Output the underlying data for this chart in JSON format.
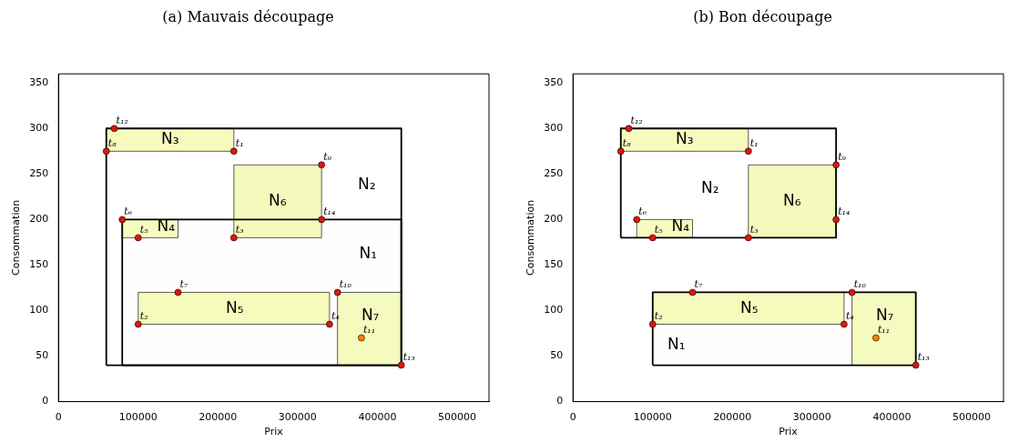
{
  "chart_data": [
    {
      "type": "scatter",
      "title": "(a) Mauvais découpage",
      "xlabel": "Prix",
      "ylabel": "Consommation",
      "xlim": [
        0,
        540000
      ],
      "ylim": [
        0,
        360
      ],
      "xticks": [
        0,
        100000,
        200000,
        300000,
        400000,
        500000
      ],
      "yticks": [
        0,
        50,
        100,
        150,
        200,
        250,
        300,
        350
      ],
      "grid": false,
      "legend": false,
      "series": [
        {
          "type": "area",
          "name": "N₃",
          "color": "#f6fabd",
          "x": [
            60000,
            220000,
            220000,
            60000,
            60000
          ],
          "values": [
            275,
            275,
            300,
            300,
            275
          ]
        },
        {
          "type": "area",
          "name": "N₆",
          "color": "#f5f9bc",
          "x": [
            220000,
            330000,
            330000,
            220000,
            220000
          ],
          "values": [
            180,
            180,
            260,
            260,
            180
          ]
        },
        {
          "type": "area",
          "name": "N₄",
          "color": "#f7fbbe",
          "x": [
            80000,
            150000,
            150000,
            80000,
            80000
          ],
          "values": [
            180,
            180,
            200,
            200,
            180
          ]
        },
        {
          "type": "area",
          "name": "N₅",
          "color": "#f6fbbc",
          "x": [
            100000,
            340000,
            340000,
            100000,
            100000
          ],
          "values": [
            85,
            85,
            120,
            120,
            85
          ]
        },
        {
          "type": "area",
          "name": "N₇",
          "color": "#f5fabe",
          "x": [
            350000,
            430000,
            430000,
            350000,
            350000
          ],
          "values": [
            40,
            40,
            120,
            120,
            40
          ]
        },
        {
          "type": "area",
          "name": "N₂",
          "color": "#ffffff",
          "x": [
            60000,
            430000,
            430000,
            60000,
            60000
          ],
          "values": [
            40,
            40,
            300,
            300,
            40
          ]
        },
        {
          "type": "area",
          "name": "N₁",
          "color": "#fefefe",
          "x": [
            80000,
            430000,
            430000,
            80000,
            80000
          ],
          "values": [
            40,
            40,
            200,
            200,
            40
          ]
        },
        {
          "colors": [
            "#e3140e",
            "#e3140e",
            "#e3140e",
            "#e3140e",
            "#e3140e",
            "#e3140e",
            "#e3140e",
            "#e3140e",
            "#e3140e",
            "#e3140e",
            "#ff7f00",
            "#e3140e",
            "#e3140e",
            "#e3140e"
          ],
          "x": [
            220000,
            100000,
            220000,
            340000,
            100000,
            80000,
            150000,
            60000,
            330000,
            350000,
            380000,
            70000,
            430000,
            330000
          ],
          "values": [
            275,
            85,
            180,
            85,
            180,
            200,
            120,
            275,
            260,
            120,
            70,
            300,
            40,
            200
          ],
          "value_labels": [
            "t₁",
            "t₂",
            "t₃",
            "t₄",
            "t₅",
            "t₆",
            "t₇",
            "t₈",
            "t₉",
            "t₁₀",
            "t₁₁",
            "t₁₂",
            "t₁₃",
            "t₁₄"
          ]
        }
      ]
    },
    {
      "type": "scatter",
      "title": "(b) Bon découpage",
      "xlabel": "Prix",
      "ylabel": "Consommation",
      "xlim": [
        0,
        540000
      ],
      "ylim": [
        0,
        360
      ],
      "xticks": [
        0,
        100000,
        200000,
        300000,
        400000,
        500000
      ],
      "yticks": [
        0,
        50,
        100,
        150,
        200,
        250,
        300,
        350
      ],
      "grid": false,
      "legend": false,
      "series": [
        {
          "type": "area",
          "name": "N₃",
          "color": "#f6fabd",
          "x": [
            60000,
            220000,
            220000,
            60000,
            60000
          ],
          "values": [
            275,
            275,
            300,
            300,
            275
          ]
        },
        {
          "type": "area",
          "name": "N₆",
          "color": "#f5f9bc",
          "x": [
            220000,
            330000,
            330000,
            220000,
            220000
          ],
          "values": [
            180,
            180,
            260,
            260,
            180
          ]
        },
        {
          "type": "area",
          "name": "N₄",
          "color": "#f7fbbe",
          "x": [
            80000,
            150000,
            150000,
            80000,
            80000
          ],
          "values": [
            180,
            180,
            200,
            200,
            180
          ]
        },
        {
          "type": "area",
          "name": "N₅",
          "color": "#f6fbbc",
          "x": [
            100000,
            340000,
            340000,
            100000,
            100000
          ],
          "values": [
            85,
            85,
            120,
            120,
            85
          ]
        },
        {
          "type": "area",
          "name": "N₇",
          "color": "#f5fabe",
          "x": [
            350000,
            430000,
            430000,
            350000,
            350000
          ],
          "values": [
            40,
            40,
            120,
            120,
            40
          ]
        },
        {
          "type": "area",
          "name": "N₂",
          "color": "#ffffff",
          "x": [
            60000,
            330000,
            330000,
            60000,
            60000
          ],
          "values": [
            180,
            180,
            300,
            300,
            180
          ]
        },
        {
          "type": "area",
          "name": "N₁",
          "color": "#fefefe",
          "x": [
            100000,
            430000,
            430000,
            100000,
            100000
          ],
          "values": [
            40,
            40,
            120,
            120,
            40
          ]
        },
        {
          "colors": [
            "#e3140e",
            "#e3140e",
            "#e3140e",
            "#e3140e",
            "#e3140e",
            "#e3140e",
            "#e3140e",
            "#e3140e",
            "#e3140e",
            "#e3140e",
            "#ff7f00",
            "#e3140e",
            "#e3140e",
            "#e3140e"
          ],
          "x": [
            220000,
            100000,
            220000,
            340000,
            100000,
            80000,
            150000,
            60000,
            330000,
            350000,
            380000,
            70000,
            430000,
            330000
          ],
          "values": [
            275,
            85,
            180,
            85,
            180,
            200,
            120,
            275,
            260,
            120,
            70,
            300,
            40,
            200
          ],
          "value_labels": [
            "t₁",
            "t₂",
            "t₃",
            "t₄",
            "t₅",
            "t₆",
            "t₇",
            "t₈",
            "t₉",
            "t₁₀",
            "t₁₁",
            "t₁₂",
            "t₁₃",
            "t₁₄"
          ]
        }
      ]
    }
  ]
}
